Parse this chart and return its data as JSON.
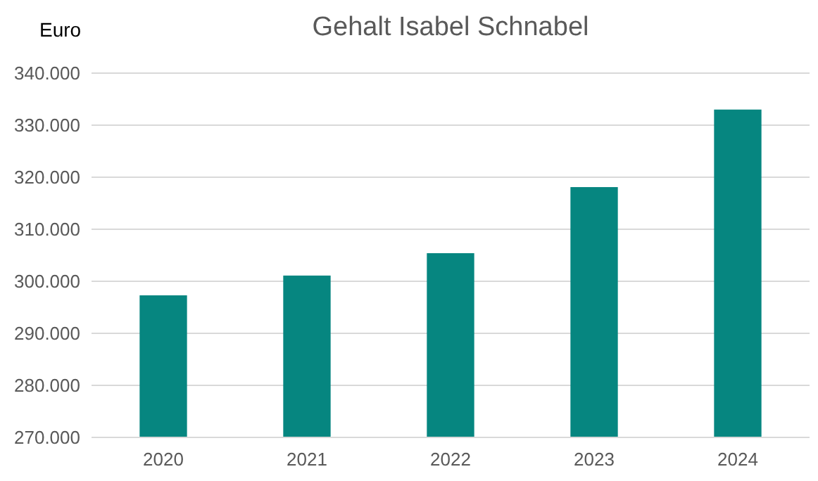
{
  "chart_data": {
    "type": "bar",
    "title": "Gehalt Isabel Schnabel",
    "ylabel": "Euro",
    "categories": [
      "2020",
      "2021",
      "2022",
      "2023",
      "2024"
    ],
    "values": [
      297300,
      301100,
      305400,
      318100,
      333000
    ],
    "color": "#068680",
    "ylim": [
      270000,
      340000
    ],
    "yticks": [
      {
        "value": 270000,
        "label": "270.000"
      },
      {
        "value": 280000,
        "label": "280.000"
      },
      {
        "value": 290000,
        "label": "290.000"
      },
      {
        "value": 300000,
        "label": "300.000"
      },
      {
        "value": 310000,
        "label": "310.000"
      },
      {
        "value": 320000,
        "label": "320.000"
      },
      {
        "value": 330000,
        "label": "330.000"
      },
      {
        "value": 340000,
        "label": "340.000"
      }
    ],
    "grid": "y"
  }
}
